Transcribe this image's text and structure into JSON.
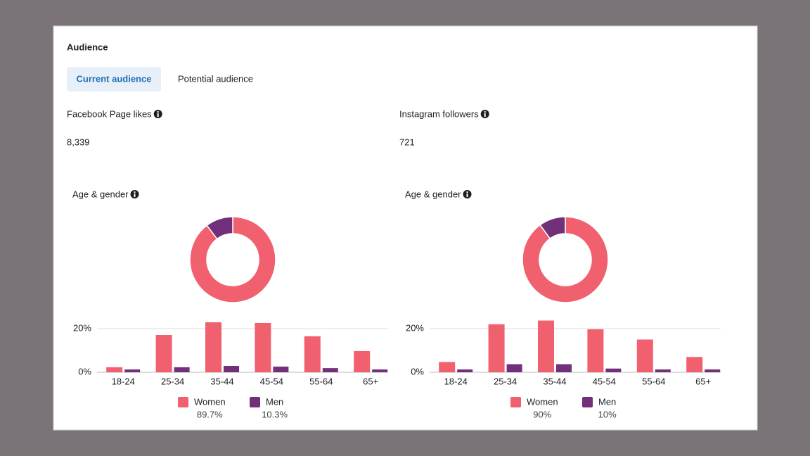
{
  "title": "Audience",
  "tabs": [
    "Current audience",
    "Potential audience"
  ],
  "panels": [
    {
      "label": "Facebook Page likes",
      "value": "8,339",
      "chart_title": "Age & gender",
      "donut": {
        "type": "pie",
        "categories": [
          "Women",
          "Men"
        ],
        "values": [
          89.7,
          10.3
        ],
        "value_labels": [
          "89.7%",
          "10.3%"
        ],
        "colors": [
          "#f0606e",
          "#73307a"
        ]
      },
      "bars": {
        "type": "bar",
        "categories": [
          "18-24",
          "25-34",
          "35-44",
          "45-54",
          "55-64",
          "65+"
        ],
        "series": [
          {
            "color": "#f0606e",
            "values": [
              2.3,
              17.1,
              22.9,
              22.6,
              16.5,
              9.7
            ]
          },
          {
            "color": "#73307a",
            "values": [
              1.3,
              2.3,
              2.9,
              2.6,
              1.9,
              1.3
            ]
          }
        ],
        "ylim": [
          0,
          25
        ],
        "yticks": [
          {
            "value": 0,
            "label": "0%"
          },
          {
            "value": 20,
            "label": "20%"
          }
        ],
        "grid": true
      }
    },
    {
      "label": "Instagram followers",
      "value": "721",
      "chart_title": "Age & gender",
      "donut": {
        "type": "pie",
        "categories": [
          "Women",
          "Men"
        ],
        "values": [
          90,
          10
        ],
        "value_labels": [
          "90%",
          "10%"
        ],
        "colors": [
          "#f0606e",
          "#73307a"
        ]
      },
      "bars": {
        "type": "bar",
        "categories": [
          "18-24",
          "25-34",
          "35-44",
          "45-54",
          "55-64",
          "65+"
        ],
        "series": [
          {
            "color": "#f0606e",
            "values": [
              4.7,
              22,
              23.7,
              19.7,
              15,
              7
            ]
          },
          {
            "color": "#73307a",
            "values": [
              1.3,
              3.7,
              3.7,
              1.7,
              1.3,
              1.3
            ]
          }
        ],
        "ylim": [
          0,
          25
        ],
        "yticks": [
          {
            "value": 0,
            "label": "0%"
          },
          {
            "value": 20,
            "label": "20%"
          }
        ],
        "grid": true
      }
    }
  ]
}
